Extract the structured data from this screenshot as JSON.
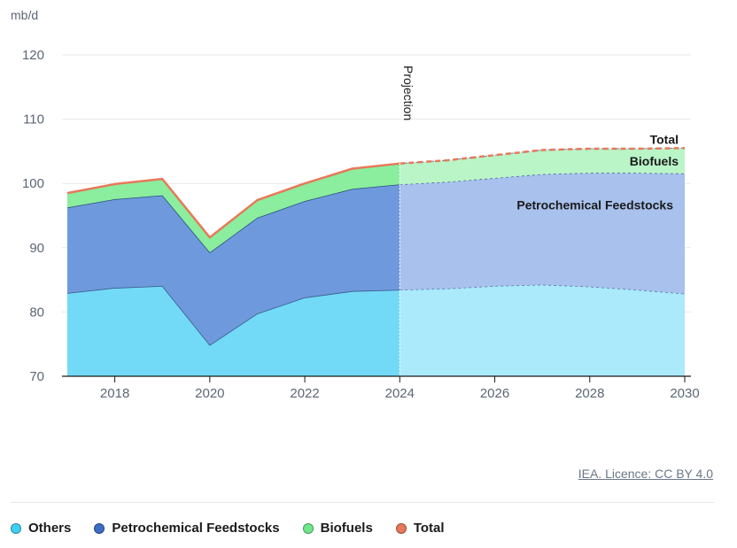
{
  "chart_data": {
    "type": "area",
    "unit": "mb/d",
    "ylim": [
      70,
      120
    ],
    "xlim": [
      2017,
      2030
    ],
    "y_ticks": [
      70,
      80,
      90,
      100,
      110,
      120
    ],
    "x_ticks": [
      2018,
      2020,
      2022,
      2024,
      2026,
      2028,
      2030
    ],
    "projection_label": "Projection",
    "projection_start": 2024,
    "x": [
      2017,
      2018,
      2019,
      2020,
      2021,
      2022,
      2023,
      2024,
      2025,
      2026,
      2027,
      2028,
      2029,
      2030
    ],
    "series": [
      {
        "name": "Others",
        "values": [
          82.9,
          83.7,
          84.0,
          74.8,
          79.7,
          82.2,
          83.2,
          83.4,
          83.6,
          84.0,
          84.2,
          83.9,
          83.4,
          82.8
        ]
      },
      {
        "name": "Petrochemical Feedstocks",
        "values": [
          13.3,
          13.8,
          14.1,
          14.4,
          14.9,
          15.0,
          15.9,
          16.4,
          16.6,
          16.8,
          17.2,
          17.7,
          18.2,
          18.7
        ]
      },
      {
        "name": "Biofuels",
        "values": [
          2.3,
          2.4,
          2.6,
          2.4,
          2.8,
          2.8,
          3.2,
          3.3,
          3.4,
          3.6,
          3.8,
          3.8,
          3.8,
          4.0
        ]
      }
    ],
    "total": {
      "name": "Total",
      "values": [
        98.5,
        99.9,
        100.7,
        91.6,
        97.4,
        100.0,
        102.3,
        103.1,
        103.6,
        104.4,
        105.2,
        105.4,
        105.4,
        105.5
      ]
    },
    "inline_labels": [
      "Total",
      "Biofuels",
      "Petrochemical Feedstocks"
    ],
    "colors": {
      "Others": "#72daf7",
      "Petrochemical Feedstocks": "#6e99dd",
      "Biofuels": "#8aee9e",
      "Total": "#e8785a",
      "Others_projection": "#aaeafb",
      "Petrochemical_projection": "#a8c1ed",
      "Biofuels_projection": "#baf5c8"
    },
    "grid": true,
    "legend_position": "bottom-left"
  },
  "credit": "IEA. Licence: CC BY 4.0",
  "legend": [
    {
      "label": "Others",
      "color": "#3fd0f5"
    },
    {
      "label": "Petrochemical Feedstocks",
      "color": "#3d6cc7"
    },
    {
      "label": "Biofuels",
      "color": "#6ee98a"
    },
    {
      "label": "Total",
      "color": "#e8785a"
    }
  ]
}
